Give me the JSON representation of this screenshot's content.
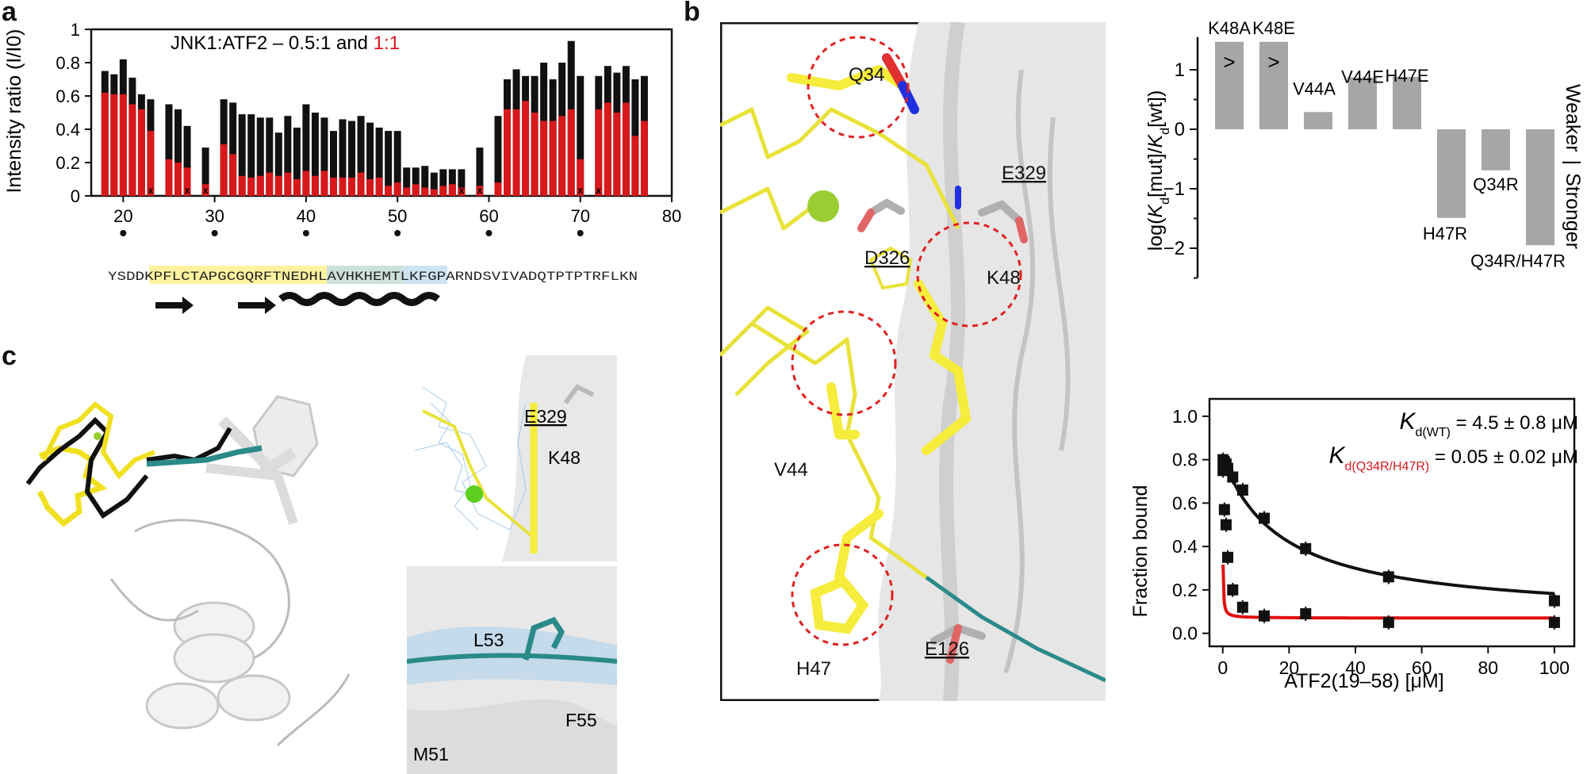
{
  "panels": {
    "a_label": "a",
    "b_label": "b",
    "c_label": "c"
  },
  "panel_a": {
    "title_black": "JNK1:ATF2 – 0.5:1 and ",
    "title_red": "1:1",
    "missing_marker": "x",
    "sequence": "YSDDKPFLCTAPGCGQRFTNEDHLAVHKHEMTLKFGPARNDSVIVADQTPTPTRFLKN",
    "colors": {
      "black": "#111111",
      "red": "#d7191c",
      "yellow_box": "#fff3a0",
      "blue_box": "#bcd9ee"
    }
  },
  "panel_b": {
    "structure_labels": [
      "Q34",
      "E329",
      "D326",
      "K48",
      "V44",
      "H47",
      "E126"
    ],
    "bar_labels": [
      "K48A",
      "K48E",
      "V44A",
      "V44E",
      "H47E",
      "H47R",
      "Q34R",
      "Q34R/H47R"
    ],
    "gt_marker": ">",
    "side_weaker": "Weaker",
    "side_sep": "|",
    "side_stronger": "Stronger",
    "ylabel_pre": "log(",
    "ylabel_k": "K",
    "ylabel_sub": "d",
    "ylabel_mid": "[mut]/",
    "ylabel_end": "[wt])",
    "kd_wt_k": "K",
    "kd_wt_sub": "d(WT)",
    "kd_wt_val": " = 4.5 ± 0.8 μM",
    "kd_mut_k": "K",
    "kd_mut_sub": "d(Q34R/H47R)",
    "kd_mut_val": " = 0.05 ± 0.02 μM"
  },
  "panel_c": {
    "inset_top_labels": [
      "E329",
      "K48"
    ],
    "inset_bottom_labels": [
      "L53",
      "M51",
      "F55"
    ]
  },
  "chart_data": [
    {
      "type": "bar",
      "title": "JNK1:ATF2 – 0.5:1 and 1:1",
      "ylabel": "Intensity ratio (I/I0)",
      "xlabel": "",
      "xlim": [
        16.5,
        80
      ],
      "ylim": [
        0,
        1
      ],
      "xticks": [
        20,
        30,
        40,
        50,
        60,
        70,
        80
      ],
      "yticks": [
        0,
        0.2,
        0.4,
        0.6,
        0.8,
        1
      ],
      "residues": [
        18,
        19,
        20,
        21,
        22,
        23,
        24,
        25,
        26,
        27,
        28,
        29,
        30,
        31,
        32,
        33,
        34,
        35,
        36,
        37,
        38,
        39,
        40,
        41,
        42,
        43,
        44,
        45,
        46,
        47,
        48,
        49,
        50,
        51,
        52,
        53,
        54,
        55,
        56,
        57,
        58,
        59,
        60,
        61,
        62,
        63,
        64,
        65,
        66,
        67,
        68,
        69,
        70,
        71,
        72,
        73,
        74,
        75,
        76,
        77
      ],
      "series": [
        {
          "name": "0.5:1",
          "values": [
            0.75,
            0.73,
            0.82,
            0.71,
            0.61,
            0.58,
            0,
            0.55,
            0.52,
            0.42,
            0,
            0.29,
            0,
            0.58,
            0.56,
            0.49,
            0.49,
            0.47,
            0.47,
            0.38,
            0.48,
            0.41,
            0.55,
            0.5,
            0.47,
            0.39,
            0.46,
            0.45,
            0.48,
            0.44,
            0.41,
            0.39,
            0.39,
            0.17,
            0.17,
            0.18,
            0.14,
            0.16,
            0.16,
            0.16,
            0,
            0.29,
            0,
            0.48,
            0.7,
            0.76,
            0.72,
            0.72,
            0.8,
            0.7,
            0.8,
            0.93,
            0.72,
            0,
            0.72,
            0.78,
            0.74,
            0.78,
            0.7,
            0.72
          ]
        },
        {
          "name": "1:1",
          "values": [
            0.62,
            0.61,
            0.61,
            0.55,
            0.52,
            0.39,
            0,
            0.22,
            0.2,
            0.17,
            0,
            0.07,
            0,
            0.31,
            0.25,
            0.12,
            0.11,
            0.12,
            0.14,
            0.12,
            0.14,
            0.1,
            0.15,
            0.12,
            0.15,
            0.11,
            0.11,
            0.11,
            0.14,
            0.1,
            0.11,
            0.06,
            0.08,
            0.05,
            0.07,
            0.05,
            0.04,
            0.06,
            0.07,
            0.05,
            0,
            0.06,
            0,
            0.08,
            0.52,
            0.52,
            0.57,
            0.5,
            0.45,
            0.45,
            0.48,
            0.52,
            0.22,
            0,
            0.52,
            0.56,
            0.5,
            0.56,
            0.36,
            0.45
          ]
        }
      ],
      "missing_residues": [
        23,
        27,
        29,
        57,
        59,
        70,
        72
      ]
    },
    {
      "type": "bar",
      "title": "",
      "ylabel": "log(Kd[mut]/Kd[wt])",
      "categories": [
        "K48A",
        "K48E",
        "V44A",
        "V44E",
        "H47E",
        "H47R",
        "Q34R",
        "Q34R/H47R"
      ],
      "values": [
        1.47,
        1.47,
        0.29,
        0.87,
        0.88,
        -1.49,
        -0.69,
        -1.95
      ],
      "lower_bound_flags": [
        true,
        true,
        false,
        false,
        false,
        false,
        false,
        false
      ],
      "ylim": [
        -2.5,
        1.5
      ],
      "yticks": [
        -2,
        -1,
        0,
        1
      ]
    },
    {
      "type": "scatter",
      "title": "",
      "xlabel": "ATF2(19–58) [μM]",
      "ylabel": "Fraction bound",
      "xlim": [
        -4,
        106
      ],
      "ylim": [
        -0.06,
        1.08
      ],
      "xticks": [
        0,
        20,
        40,
        60,
        80,
        100
      ],
      "yticks": [
        0.0,
        0.2,
        0.4,
        0.6,
        0.8,
        1.0
      ],
      "series": [
        {
          "name": "WT",
          "x": [
            0.1,
            0.5,
            1,
            1.5,
            3,
            6,
            12.5,
            25,
            50,
            100
          ],
          "y": [
            0.8,
            0.79,
            0.78,
            0.76,
            0.72,
            0.66,
            0.53,
            0.39,
            0.26,
            0.15
          ],
          "kd": 4.5
        },
        {
          "name": "Q34R/H47R",
          "x": [
            0.1,
            0.5,
            1,
            1.5,
            3,
            6,
            12.5,
            25,
            50,
            100
          ],
          "y": [
            0.75,
            0.57,
            0.5,
            0.35,
            0.2,
            0.12,
            0.08,
            0.09,
            0.05,
            0.05
          ],
          "kd": 0.05
        }
      ]
    }
  ]
}
